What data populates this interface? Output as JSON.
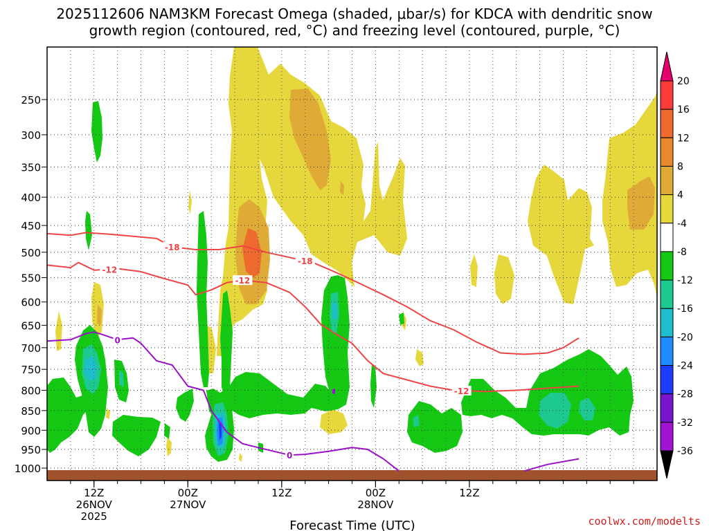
{
  "chart_data": {
    "type": "time-height",
    "title_line1": "2025112606 NAM3KM Forecast Omega (shaded, μbar/s) for KDCA with dendritic snow",
    "title_line2": "growth region (contoured, red, °C) and freezing level (contoured, purple, °C)",
    "xlabel": "Forecast Time (UTC)",
    "credit": "coolwx.com/modelts",
    "x_range_hours": [
      6,
      84
    ],
    "x_ticks": [
      {
        "hour": 12,
        "lines": [
          "12Z",
          "26NOV",
          "2025"
        ]
      },
      {
        "hour": 24,
        "lines": [
          "00Z",
          "27NOV"
        ]
      },
      {
        "hour": 36,
        "lines": [
          "12Z"
        ]
      },
      {
        "hour": 48,
        "lines": [
          "00Z",
          "28NOV"
        ]
      },
      {
        "hour": 60,
        "lines": [
          "12Z"
        ]
      }
    ],
    "y_range_hpa": [
      200,
      1025
    ],
    "y_ticks": [
      250,
      300,
      350,
      400,
      450,
      500,
      550,
      600,
      650,
      700,
      750,
      800,
      850,
      900,
      950,
      1000
    ],
    "colorbar": {
      "labels": [
        "20",
        "16",
        "12",
        "8",
        "4",
        "-4",
        "-8",
        "-12",
        "-16",
        "-20",
        "-24",
        "-28",
        "-32",
        "-36"
      ],
      "bins": [
        {
          "color": "#e6006e"
        },
        {
          "color": "#ff3c3c"
        },
        {
          "color": "#ee6a2e"
        },
        {
          "color": "#e8892e"
        },
        {
          "color": "#e0aa36"
        },
        {
          "color": "#e6d83c"
        },
        {
          "color": "#ffffff"
        },
        {
          "color": "#14c814"
        },
        {
          "color": "#1ec891"
        },
        {
          "color": "#1ebecd"
        },
        {
          "color": "#1e8cff"
        },
        {
          "color": "#1e3cff"
        },
        {
          "color": "#7814cd"
        },
        {
          "color": "#a014d2"
        },
        {
          "color": "#a0a0a0"
        },
        {
          "color": "#000000"
        }
      ]
    },
    "contours": [
      {
        "name": "temp-minus18",
        "label": "-18",
        "color": "#ee4444",
        "labels_at_hours": [
          22,
          39
        ],
        "points": [
          [
            6,
            465
          ],
          [
            9,
            468
          ],
          [
            11,
            463
          ],
          [
            14,
            466
          ],
          [
            17,
            470
          ],
          [
            20,
            474
          ],
          [
            22,
            490
          ],
          [
            25,
            495
          ],
          [
            28,
            495
          ],
          [
            31,
            488
          ],
          [
            34,
            500
          ],
          [
            37,
            510
          ],
          [
            40,
            520
          ],
          [
            43,
            540
          ],
          [
            46,
            562
          ],
          [
            49,
            585
          ],
          [
            52,
            610
          ],
          [
            55,
            640
          ],
          [
            58,
            660
          ],
          [
            61,
            688
          ],
          [
            64,
            712
          ],
          [
            67,
            715
          ],
          [
            70,
            712
          ],
          [
            72,
            700
          ],
          [
            74,
            678
          ]
        ]
      },
      {
        "name": "temp-minus12",
        "label": "-12",
        "color": "#ee4444",
        "labels_at_hours": [
          14,
          31,
          59
        ],
        "points": [
          [
            6,
            525
          ],
          [
            9,
            530
          ],
          [
            10,
            520
          ],
          [
            12,
            535
          ],
          [
            15,
            532
          ],
          [
            18,
            538
          ],
          [
            21,
            552
          ],
          [
            24,
            565
          ],
          [
            25,
            585
          ],
          [
            27,
            575
          ],
          [
            29,
            560
          ],
          [
            31,
            555
          ],
          [
            34,
            560
          ],
          [
            37,
            580
          ],
          [
            39,
            610
          ],
          [
            41,
            648
          ],
          [
            43,
            670
          ],
          [
            45,
            690
          ],
          [
            47,
            730
          ],
          [
            49,
            760
          ],
          [
            52,
            775
          ],
          [
            55,
            790
          ],
          [
            58,
            800
          ],
          [
            62,
            803
          ],
          [
            66,
            800
          ],
          [
            70,
            795
          ],
          [
            74,
            790
          ]
        ]
      },
      {
        "name": "temp-0",
        "label": "0",
        "color": "#9a10c8",
        "labels_at_hours": [
          15,
          37
        ],
        "points": [
          [
            6,
            685
          ],
          [
            9,
            682
          ],
          [
            11,
            668
          ],
          [
            12,
            665
          ],
          [
            13,
            670
          ],
          [
            15,
            682
          ],
          [
            17,
            678
          ],
          [
            18,
            690
          ],
          [
            20,
            730
          ],
          [
            22,
            740
          ],
          [
            24,
            790
          ],
          [
            26,
            800
          ],
          [
            27,
            850
          ],
          [
            29,
            905
          ],
          [
            31,
            935
          ],
          [
            33,
            945
          ],
          [
            37,
            965
          ],
          [
            39,
            963
          ],
          [
            42,
            955
          ],
          [
            45,
            945
          ],
          [
            47,
            950
          ],
          [
            49,
            975
          ],
          [
            51,
            1008
          ]
        ]
      },
      {
        "name": "temp-0-right",
        "label": "",
        "color": "#9a10c8",
        "labels_at_hours": [],
        "points": [
          [
            67,
            1008
          ],
          [
            70,
            990
          ],
          [
            74,
            975
          ]
        ]
      }
    ]
  }
}
